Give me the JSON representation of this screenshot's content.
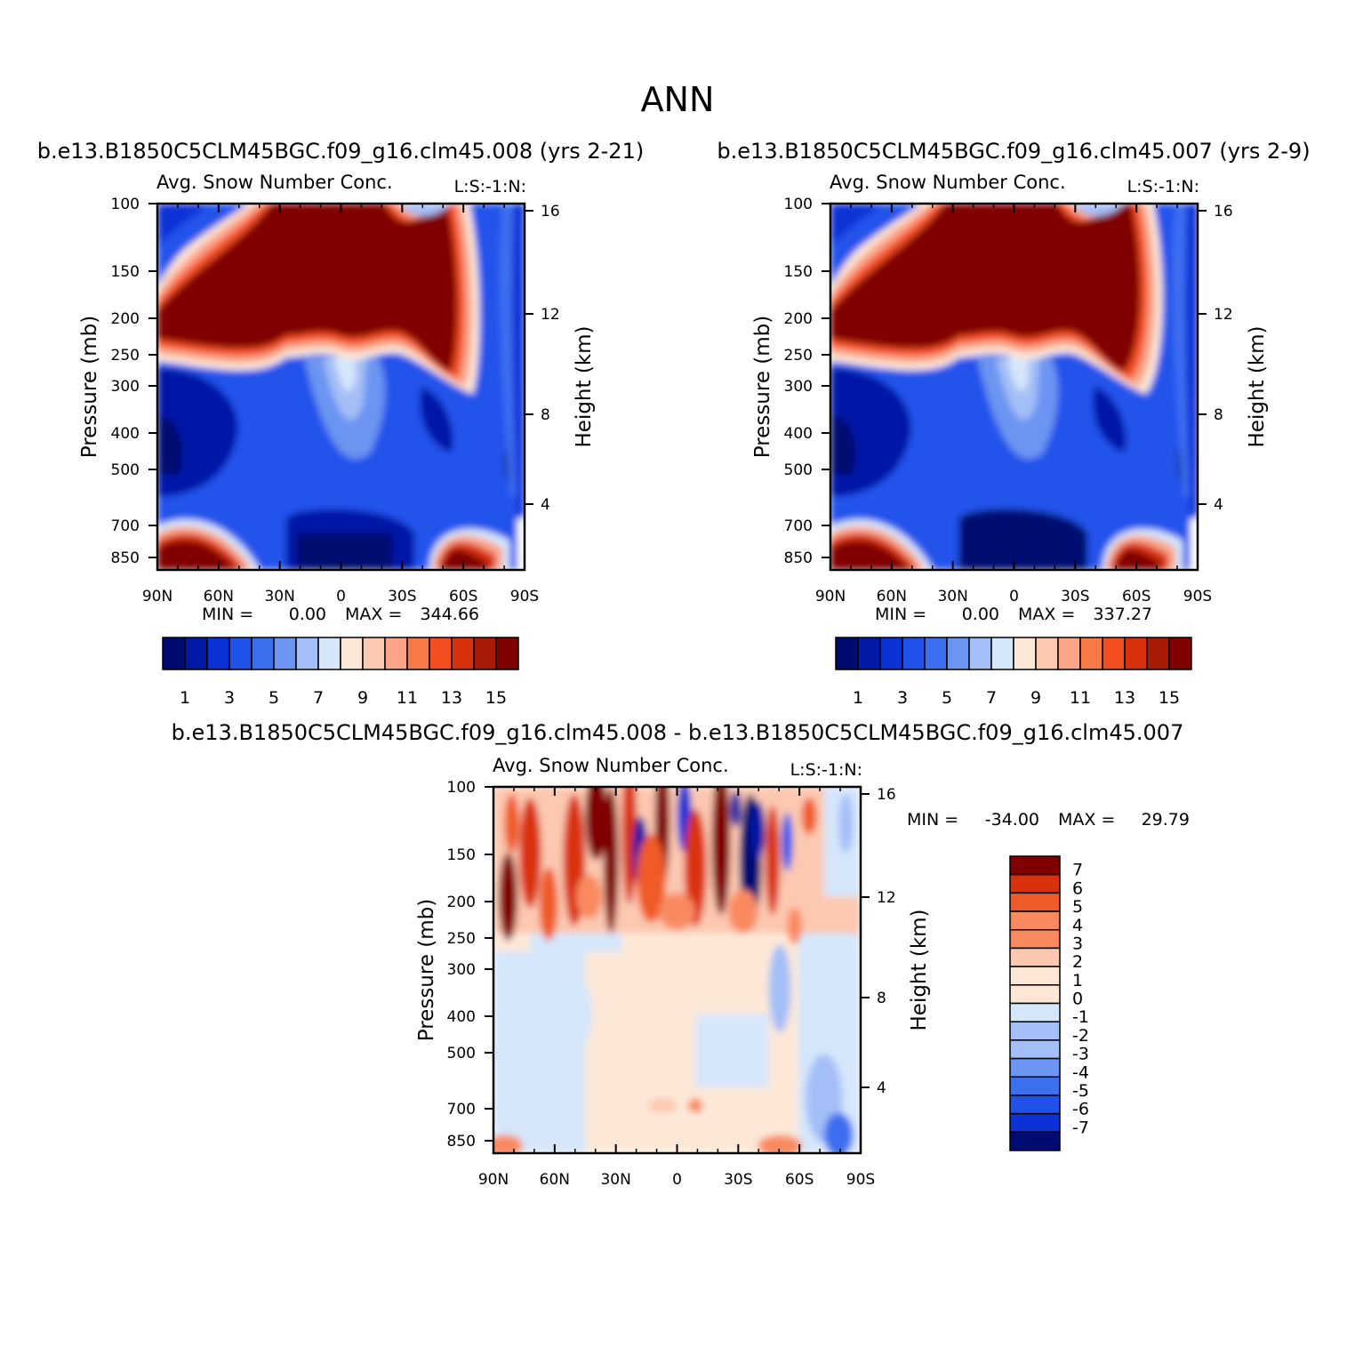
{
  "figure_title": "ANN",
  "colors": {
    "blue_red_16": [
      "#000a70",
      "#0019a6",
      "#0a32d6",
      "#2052eb",
      "#3c6ef0",
      "#6c94f2",
      "#a4bff7",
      "#d6e6fb",
      "#fde8d8",
      "#fcc8b0",
      "#fba488",
      "#f97848",
      "#f44d20",
      "#d9300e",
      "#a81a06",
      "#800000"
    ],
    "diff_14": [
      "#000a70",
      "#0019a6",
      "#0a32d6",
      "#2052eb",
      "#3c6ef0",
      "#6c94f2",
      "#a4bff7",
      "#d6e6fb",
      "#fde8d8",
      "#fcc8b0",
      "#f98a60",
      "#f05a28",
      "#d9300e",
      "#800000"
    ]
  },
  "chart_data": [
    {
      "type": "heatmap",
      "case_title": "b.e13.B1850C5CLM45BGC.f09_g16.clm45.008 (yrs 2-21)",
      "variable_title": "Avg. Snow Number Conc.",
      "right_title": "L:S:-1:N:",
      "xlabel": "",
      "ylabel": "Pressure (mb)",
      "y2label": "Height (km)",
      "x_ticks": [
        "90N",
        "60N",
        "30N",
        "0",
        "30S",
        "60S",
        "90S"
      ],
      "y_ticks": [
        "100",
        "150",
        "200",
        "250",
        "300",
        "400",
        "500",
        "700",
        "850"
      ],
      "y2_ticks": [
        "16",
        "12",
        "8",
        "4"
      ],
      "min_label": "MIN =",
      "min_value": "0.00",
      "max_label": "MAX =",
      "max_value": "344.66",
      "colorbar_labels": [
        "1",
        "3",
        "5",
        "7",
        "9",
        "11",
        "13",
        "15"
      ]
    },
    {
      "type": "heatmap",
      "case_title": "b.e13.B1850C5CLM45BGC.f09_g16.clm45.007 (yrs 2-9)",
      "variable_title": "Avg. Snow Number Conc.",
      "right_title": "L:S:-1:N:",
      "xlabel": "",
      "ylabel": "Pressure (mb)",
      "y2label": "Height (km)",
      "x_ticks": [
        "90N",
        "60N",
        "30N",
        "0",
        "30S",
        "60S",
        "90S"
      ],
      "y_ticks": [
        "100",
        "150",
        "200",
        "250",
        "300",
        "400",
        "500",
        "700",
        "850"
      ],
      "y2_ticks": [
        "16",
        "12",
        "8",
        "4"
      ],
      "min_label": "MIN =",
      "min_value": "0.00",
      "max_label": "MAX =",
      "max_value": "337.27",
      "colorbar_labels": [
        "1",
        "3",
        "5",
        "7",
        "9",
        "11",
        "13",
        "15"
      ]
    },
    {
      "type": "heatmap",
      "case_title": "b.e13.B1850C5CLM45BGC.f09_g16.clm45.008 - b.e13.B1850C5CLM45BGC.f09_g16.clm45.007",
      "variable_title": "Avg. Snow Number Conc.",
      "right_title": "L:S:-1:N:",
      "xlabel": "",
      "ylabel": "Pressure (mb)",
      "y2label": "Height (km)",
      "x_ticks": [
        "90N",
        "60N",
        "30N",
        "0",
        "30S",
        "60S",
        "90S"
      ],
      "y_ticks": [
        "100",
        "150",
        "200",
        "250",
        "300",
        "400",
        "500",
        "700",
        "850"
      ],
      "y2_ticks": [
        "16",
        "12",
        "8",
        "4"
      ],
      "min_label": "MIN =",
      "min_value": "-34.00",
      "max_label": "MAX =",
      "max_value": "29.79",
      "colorbar_labels": [
        "7",
        "6",
        "5",
        "4",
        "3",
        "2",
        "1",
        "0",
        "-1",
        "-2",
        "-3",
        "-4",
        "-5",
        "-6",
        "-7"
      ]
    }
  ]
}
